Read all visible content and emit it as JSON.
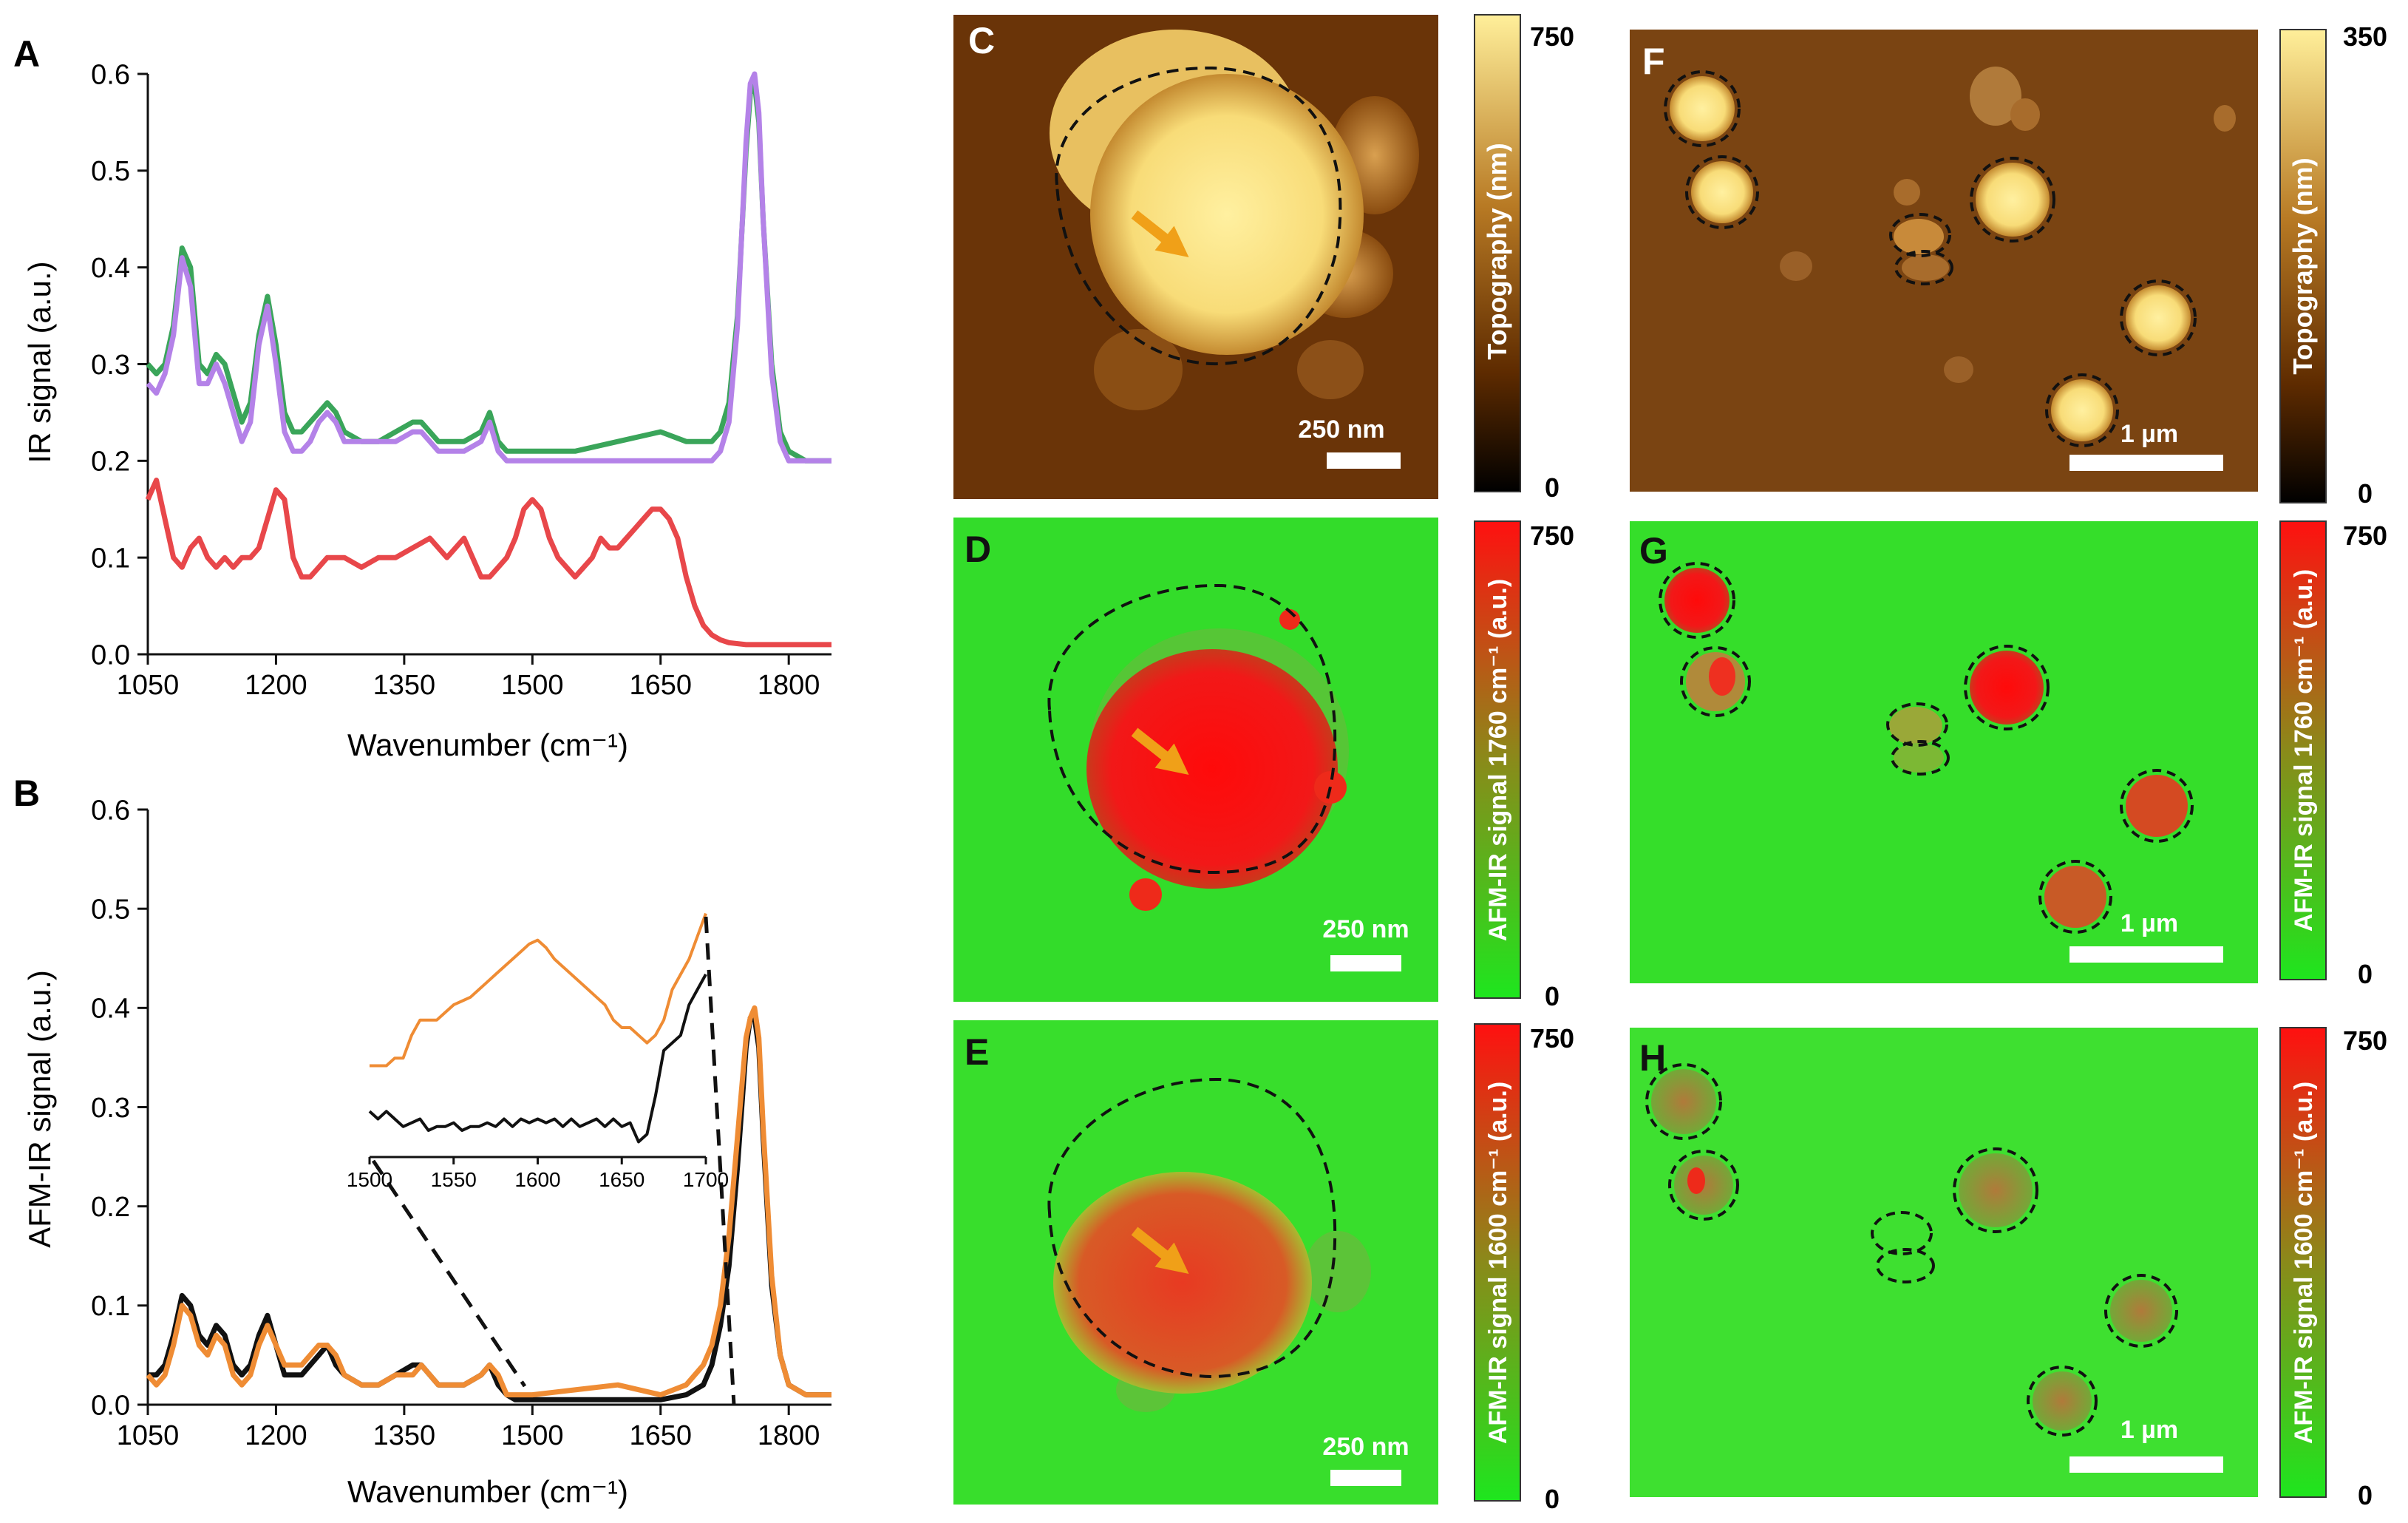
{
  "figure": {
    "panel_letters": {
      "A": "A",
      "B": "B",
      "C": "C",
      "D": "D",
      "E": "E",
      "F": "F",
      "G": "G",
      "H": "H"
    },
    "colors": {
      "green_series": "#3aa55a",
      "purple_series": "#b482e8",
      "red_series": "#e8474a",
      "black_series": "#111111",
      "orange_series": "#ef8c34",
      "map_green": "#2ee22a",
      "map_red": "#ff1010",
      "topo_dark": "#5e2b00",
      "topo_light": "#ffe790",
      "arrow": "#f0a018"
    }
  },
  "chart_data": [
    {
      "panel": "A",
      "type": "line",
      "xlabel": "Wavenumber (cm⁻¹)",
      "ylabel": "IR signal (a.u.)",
      "xlim": [
        1050,
        1850
      ],
      "ylim": [
        0,
        0.6
      ],
      "xticks": [
        "1050",
        "1200",
        "1350",
        "1500",
        "1650",
        "1800"
      ],
      "yticks": [
        "0.0",
        "0.1",
        "0.2",
        "0.3",
        "0.4",
        "0.5",
        "0.6"
      ],
      "series": [
        {
          "name": "green",
          "color": "#3aa55a",
          "x": [
            1050,
            1060,
            1070,
            1080,
            1090,
            1100,
            1110,
            1120,
            1130,
            1140,
            1150,
            1160,
            1170,
            1180,
            1190,
            1200,
            1210,
            1220,
            1230,
            1240,
            1250,
            1260,
            1270,
            1280,
            1300,
            1320,
            1340,
            1360,
            1370,
            1380,
            1390,
            1400,
            1420,
            1440,
            1450,
            1460,
            1470,
            1480,
            1500,
            1550,
            1600,
            1650,
            1680,
            1700,
            1710,
            1720,
            1730,
            1740,
            1750,
            1755,
            1760,
            1765,
            1770,
            1780,
            1790,
            1800,
            1820,
            1850
          ],
          "y": [
            0.3,
            0.29,
            0.3,
            0.34,
            0.42,
            0.4,
            0.3,
            0.29,
            0.31,
            0.3,
            0.27,
            0.24,
            0.26,
            0.33,
            0.37,
            0.32,
            0.25,
            0.23,
            0.23,
            0.24,
            0.25,
            0.26,
            0.25,
            0.23,
            0.22,
            0.22,
            0.23,
            0.24,
            0.24,
            0.23,
            0.22,
            0.22,
            0.22,
            0.23,
            0.25,
            0.22,
            0.21,
            0.21,
            0.21,
            0.21,
            0.22,
            0.23,
            0.22,
            0.22,
            0.22,
            0.23,
            0.26,
            0.35,
            0.52,
            0.58,
            0.59,
            0.55,
            0.45,
            0.3,
            0.23,
            0.21,
            0.2,
            0.2
          ]
        },
        {
          "name": "purple",
          "color": "#b482e8",
          "x": [
            1050,
            1060,
            1070,
            1080,
            1090,
            1100,
            1110,
            1120,
            1130,
            1140,
            1150,
            1160,
            1170,
            1180,
            1190,
            1200,
            1210,
            1220,
            1230,
            1240,
            1250,
            1260,
            1270,
            1280,
            1300,
            1320,
            1340,
            1360,
            1370,
            1380,
            1390,
            1400,
            1420,
            1440,
            1450,
            1460,
            1470,
            1480,
            1500,
            1550,
            1600,
            1650,
            1680,
            1700,
            1710,
            1720,
            1730,
            1740,
            1750,
            1755,
            1760,
            1765,
            1770,
            1780,
            1790,
            1800,
            1820,
            1850
          ],
          "y": [
            0.28,
            0.27,
            0.29,
            0.33,
            0.41,
            0.38,
            0.28,
            0.28,
            0.3,
            0.28,
            0.25,
            0.22,
            0.24,
            0.32,
            0.36,
            0.3,
            0.23,
            0.21,
            0.21,
            0.22,
            0.24,
            0.25,
            0.24,
            0.22,
            0.22,
            0.22,
            0.22,
            0.23,
            0.23,
            0.22,
            0.21,
            0.21,
            0.21,
            0.22,
            0.24,
            0.21,
            0.2,
            0.2,
            0.2,
            0.2,
            0.2,
            0.2,
            0.2,
            0.2,
            0.2,
            0.21,
            0.24,
            0.34,
            0.53,
            0.59,
            0.6,
            0.56,
            0.45,
            0.29,
            0.22,
            0.2,
            0.2,
            0.2
          ]
        },
        {
          "name": "red",
          "color": "#e8474a",
          "x": [
            1050,
            1055,
            1060,
            1070,
            1080,
            1090,
            1100,
            1110,
            1120,
            1130,
            1140,
            1150,
            1160,
            1170,
            1180,
            1190,
            1200,
            1210,
            1220,
            1230,
            1240,
            1250,
            1260,
            1270,
            1280,
            1300,
            1320,
            1340,
            1360,
            1380,
            1390,
            1400,
            1410,
            1420,
            1430,
            1440,
            1450,
            1460,
            1470,
            1480,
            1490,
            1500,
            1510,
            1520,
            1530,
            1540,
            1550,
            1560,
            1570,
            1580,
            1590,
            1600,
            1610,
            1620,
            1630,
            1640,
            1650,
            1660,
            1670,
            1680,
            1690,
            1700,
            1710,
            1720,
            1730,
            1750,
            1800,
            1850
          ],
          "y": [
            0.16,
            0.17,
            0.18,
            0.14,
            0.1,
            0.09,
            0.11,
            0.12,
            0.1,
            0.09,
            0.1,
            0.09,
            0.1,
            0.1,
            0.11,
            0.14,
            0.17,
            0.16,
            0.1,
            0.08,
            0.08,
            0.09,
            0.1,
            0.1,
            0.1,
            0.09,
            0.1,
            0.1,
            0.11,
            0.12,
            0.11,
            0.1,
            0.11,
            0.12,
            0.1,
            0.08,
            0.08,
            0.09,
            0.1,
            0.12,
            0.15,
            0.16,
            0.15,
            0.12,
            0.1,
            0.09,
            0.08,
            0.09,
            0.1,
            0.12,
            0.11,
            0.11,
            0.12,
            0.13,
            0.14,
            0.15,
            0.15,
            0.14,
            0.12,
            0.08,
            0.05,
            0.03,
            0.02,
            0.015,
            0.012,
            0.01,
            0.01,
            0.01
          ]
        }
      ]
    },
    {
      "panel": "B",
      "type": "line",
      "xlabel": "Wavenumber (cm⁻¹)",
      "ylabel": "AFM-IR signal (a.u.)",
      "xlim": [
        1050,
        1850
      ],
      "ylim": [
        0,
        0.6
      ],
      "xticks": [
        "1050",
        "1200",
        "1350",
        "1500",
        "1650",
        "1800"
      ],
      "yticks": [
        "0.0",
        "0.1",
        "0.2",
        "0.3",
        "0.4",
        "0.5",
        "0.6"
      ],
      "series": [
        {
          "name": "black",
          "color": "#111111",
          "x": [
            1050,
            1060,
            1070,
            1080,
            1090,
            1100,
            1110,
            1120,
            1130,
            1140,
            1150,
            1160,
            1170,
            1180,
            1190,
            1200,
            1210,
            1220,
            1230,
            1240,
            1250,
            1260,
            1270,
            1280,
            1300,
            1320,
            1340,
            1360,
            1370,
            1380,
            1390,
            1400,
            1420,
            1440,
            1450,
            1460,
            1470,
            1480,
            1500,
            1550,
            1600,
            1650,
            1680,
            1700,
            1710,
            1720,
            1730,
            1740,
            1750,
            1755,
            1760,
            1765,
            1770,
            1780,
            1790,
            1800,
            1820,
            1850
          ],
          "y": [
            0.03,
            0.03,
            0.04,
            0.07,
            0.11,
            0.1,
            0.07,
            0.06,
            0.08,
            0.07,
            0.04,
            0.03,
            0.04,
            0.07,
            0.09,
            0.06,
            0.03,
            0.03,
            0.03,
            0.04,
            0.05,
            0.06,
            0.04,
            0.03,
            0.02,
            0.02,
            0.03,
            0.04,
            0.04,
            0.03,
            0.02,
            0.02,
            0.02,
            0.03,
            0.04,
            0.02,
            0.01,
            0.005,
            0.005,
            0.005,
            0.005,
            0.005,
            0.01,
            0.02,
            0.04,
            0.08,
            0.14,
            0.24,
            0.36,
            0.39,
            0.39,
            0.36,
            0.27,
            0.12,
            0.05,
            0.02,
            0.01,
            0.01
          ]
        },
        {
          "name": "orange",
          "color": "#ef8c34",
          "x": [
            1050,
            1060,
            1070,
            1080,
            1090,
            1100,
            1110,
            1120,
            1130,
            1140,
            1150,
            1160,
            1170,
            1180,
            1190,
            1200,
            1210,
            1220,
            1230,
            1240,
            1250,
            1260,
            1270,
            1280,
            1300,
            1320,
            1340,
            1360,
            1370,
            1380,
            1390,
            1400,
            1420,
            1440,
            1450,
            1460,
            1470,
            1480,
            1500,
            1550,
            1600,
            1650,
            1680,
            1700,
            1710,
            1720,
            1730,
            1740,
            1750,
            1755,
            1760,
            1765,
            1770,
            1780,
            1790,
            1800,
            1820,
            1850
          ],
          "y": [
            0.03,
            0.02,
            0.03,
            0.06,
            0.1,
            0.09,
            0.06,
            0.05,
            0.07,
            0.06,
            0.03,
            0.02,
            0.03,
            0.06,
            0.08,
            0.06,
            0.04,
            0.04,
            0.04,
            0.05,
            0.06,
            0.06,
            0.05,
            0.03,
            0.02,
            0.02,
            0.03,
            0.03,
            0.04,
            0.03,
            0.02,
            0.02,
            0.02,
            0.03,
            0.04,
            0.03,
            0.01,
            0.01,
            0.01,
            0.015,
            0.02,
            0.01,
            0.02,
            0.04,
            0.06,
            0.1,
            0.17,
            0.27,
            0.37,
            0.39,
            0.4,
            0.37,
            0.28,
            0.13,
            0.05,
            0.02,
            0.01,
            0.01
          ]
        }
      ]
    },
    {
      "panel": "B-inset",
      "type": "line",
      "xlim": [
        1500,
        1700
      ],
      "xticks": [
        "1500",
        "1550",
        "1600",
        "1650",
        "1700"
      ],
      "series": [
        {
          "name": "orange",
          "color": "#ef8c34",
          "x": [
            1500,
            1505,
            1510,
            1515,
            1520,
            1525,
            1530,
            1535,
            1540,
            1545,
            1550,
            1555,
            1560,
            1565,
            1570,
            1575,
            1580,
            1585,
            1590,
            1595,
            1600,
            1605,
            1610,
            1615,
            1620,
            1625,
            1630,
            1635,
            1640,
            1645,
            1650,
            1655,
            1660,
            1665,
            1670,
            1675,
            1680,
            1685,
            1690,
            1695,
            1700
          ],
          "y": [
            0.3,
            0.3,
            0.3,
            0.31,
            0.31,
            0.34,
            0.36,
            0.36,
            0.36,
            0.37,
            0.38,
            0.385,
            0.39,
            0.4,
            0.41,
            0.42,
            0.43,
            0.44,
            0.45,
            0.46,
            0.465,
            0.455,
            0.44,
            0.43,
            0.42,
            0.41,
            0.4,
            0.39,
            0.38,
            0.36,
            0.35,
            0.35,
            0.34,
            0.33,
            0.34,
            0.36,
            0.4,
            0.42,
            0.44,
            0.47,
            0.5
          ]
        },
        {
          "name": "black",
          "color": "#111111",
          "x": [
            1500,
            1505,
            1510,
            1515,
            1520,
            1525,
            1530,
            1535,
            1540,
            1545,
            1550,
            1555,
            1560,
            1565,
            1570,
            1575,
            1580,
            1585,
            1590,
            1595,
            1600,
            1605,
            1610,
            1615,
            1620,
            1625,
            1630,
            1635,
            1640,
            1645,
            1650,
            1655,
            1660,
            1665,
            1670,
            1675,
            1680,
            1685,
            1690,
            1695,
            1700
          ],
          "y": [
            0.24,
            0.23,
            0.24,
            0.23,
            0.22,
            0.225,
            0.23,
            0.215,
            0.22,
            0.22,
            0.225,
            0.215,
            0.22,
            0.22,
            0.225,
            0.22,
            0.23,
            0.22,
            0.23,
            0.225,
            0.23,
            0.225,
            0.23,
            0.22,
            0.23,
            0.22,
            0.225,
            0.23,
            0.22,
            0.23,
            0.22,
            0.225,
            0.2,
            0.21,
            0.26,
            0.32,
            0.33,
            0.34,
            0.38,
            0.4,
            0.42
          ]
        }
      ]
    }
  ],
  "images": {
    "C": {
      "scale_bar": "250 nm",
      "colorbar_label": "Topography (nm)",
      "cb_max": "750",
      "cb_min": "0"
    },
    "D": {
      "scale_bar": "250 nm",
      "colorbar_label": "AFM-IR signal 1760 cm⁻¹ (a.u.)",
      "cb_max": "750",
      "cb_min": "0"
    },
    "E": {
      "scale_bar": "250 nm",
      "colorbar_label": "AFM-IR signal 1600 cm⁻¹ (a.u.)",
      "cb_max": "750",
      "cb_min": "0"
    },
    "F": {
      "scale_bar": "1 µm",
      "colorbar_label": "Topography (nm)",
      "cb_max": "350",
      "cb_min": "0"
    },
    "G": {
      "scale_bar": "1 µm",
      "colorbar_label": "AFM-IR signal 1760 cm⁻¹ (a.u.)",
      "cb_max": "750",
      "cb_min": "0"
    },
    "H": {
      "scale_bar": "1 µm",
      "colorbar_label": "AFM-IR signal 1600 cm⁻¹ (a.u.)",
      "cb_max": "750",
      "cb_min": "0"
    }
  }
}
